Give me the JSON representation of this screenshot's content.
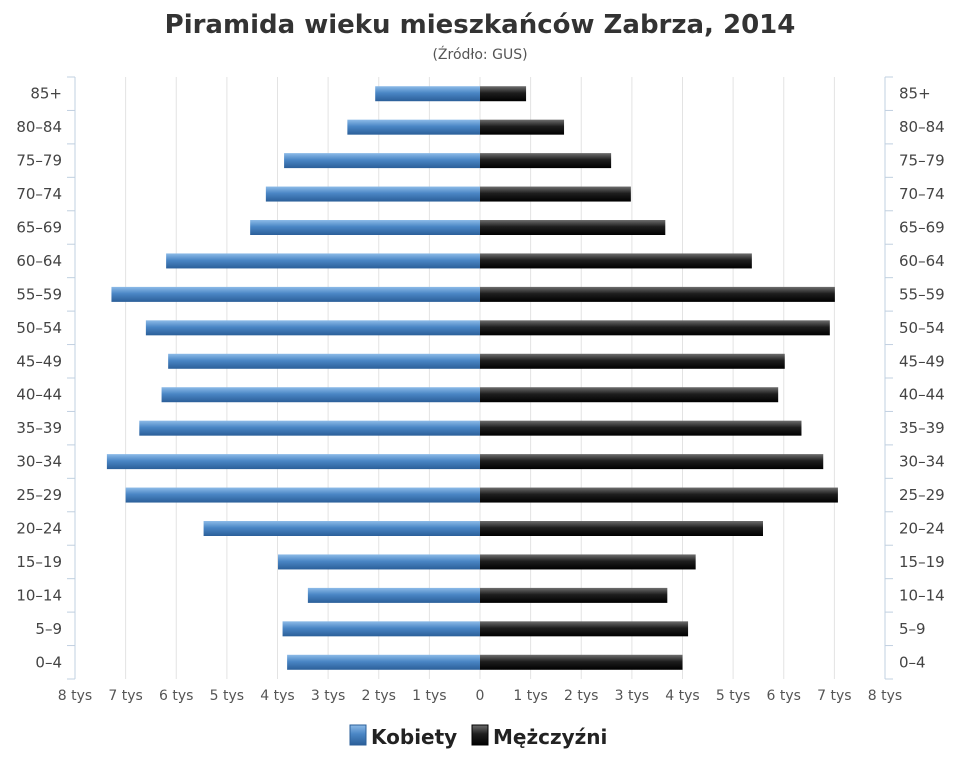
{
  "chart_data": {
    "type": "bar",
    "orientation": "horizontal",
    "title": "Piramida wieku mieszkańców Zabrza, 2014",
    "subtitle": "(Źródło: GUS)",
    "categories": [
      "85+",
      "80–84",
      "75–79",
      "70–74",
      "65–69",
      "60–64",
      "55–59",
      "50–54",
      "45–49",
      "40–44",
      "35–39",
      "30–34",
      "25–29",
      "20–24",
      "15–19",
      "10–14",
      "5–9",
      "0–4"
    ],
    "x_ticks": [
      "8 tys",
      "7 tys",
      "6 tys",
      "5 tys",
      "4 tys",
      "3 tys",
      "2 tys",
      "1 tys",
      "0",
      "1 tys",
      "2 tys",
      "3 tys",
      "4 tys",
      "5 tys",
      "6 tys",
      "7 tys",
      "8 tys"
    ],
    "xlim": [
      -8000,
      8000
    ],
    "grid": true,
    "legend_position": "bottom",
    "series": [
      {
        "name": "Kobiety",
        "side": "left",
        "color": "#4a86c5",
        "values": [
          2070,
          2620,
          3870,
          4230,
          4540,
          6200,
          7280,
          6600,
          6160,
          6290,
          6730,
          7370,
          7000,
          5460,
          3990,
          3400,
          3900,
          3810
        ]
      },
      {
        "name": "Mężczyźni",
        "side": "right",
        "color": "#1a1a1a",
        "values": [
          910,
          1660,
          2590,
          2980,
          3660,
          5370,
          7010,
          6910,
          6020,
          5890,
          6350,
          6780,
          7070,
          5590,
          4260,
          3700,
          4110,
          4000
        ]
      }
    ]
  }
}
